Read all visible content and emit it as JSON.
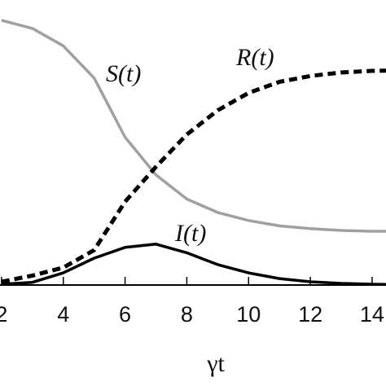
{
  "chart_data": {
    "type": "line",
    "x": [
      2,
      3,
      4,
      5,
      6,
      7,
      8,
      9,
      10,
      11,
      12,
      13,
      14,
      14.45
    ],
    "series": [
      {
        "name": "S(t)",
        "color": "#a0a0a0",
        "style": "solid",
        "values": [
          0.985,
          0.955,
          0.89,
          0.77,
          0.55,
          0.41,
          0.32,
          0.27,
          0.24,
          0.22,
          0.21,
          0.203,
          0.2,
          0.2
        ]
      },
      {
        "name": "R(t)",
        "color": "#000000",
        "style": "dashed",
        "values": [
          0.012,
          0.035,
          0.065,
          0.13,
          0.31,
          0.44,
          0.56,
          0.65,
          0.715,
          0.756,
          0.778,
          0.791,
          0.797,
          0.798
        ]
      },
      {
        "name": "I(t)",
        "color": "#000000",
        "style": "solid",
        "values": [
          0.003,
          0.01,
          0.045,
          0.1,
          0.14,
          0.152,
          0.12,
          0.076,
          0.045,
          0.024,
          0.012,
          0.006,
          0.003,
          0.002
        ]
      }
    ],
    "xlim": [
      1.95,
      14.45
    ],
    "ylim": [
      0,
      1
    ],
    "xticks": [
      2,
      4,
      6,
      8,
      10,
      12,
      14
    ],
    "xlabel": "γt",
    "annotations": [
      {
        "text": "S(t)"
      },
      {
        "text": "R(t)"
      },
      {
        "text": "I(t)"
      }
    ]
  }
}
